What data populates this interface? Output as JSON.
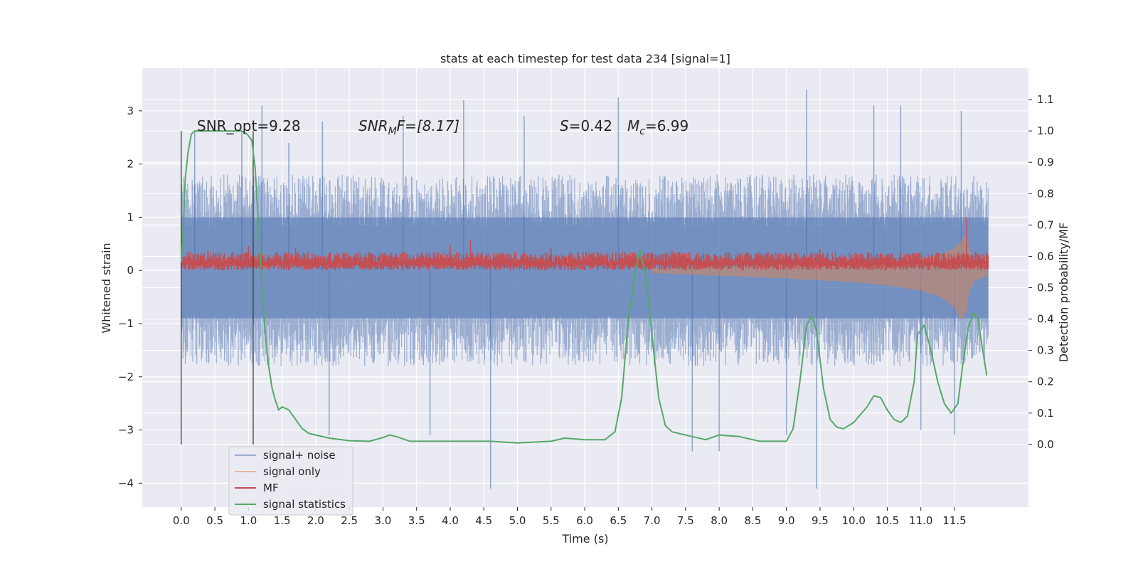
{
  "chart_data": {
    "type": "line",
    "title": "stats at each timestep for test data 234 [signal=1]",
    "xlabel": "Time (s)",
    "ylabel": "Whitened strain",
    "y2label": "Detection probability/MF",
    "xlim": [
      -0.58,
      12.6
    ],
    "ylim": [
      -4.45,
      3.8
    ],
    "y2lim": [
      -0.2,
      1.2
    ],
    "x_ticks": [
      "0.0",
      "0.5",
      "1.0",
      "1.5",
      "2.0",
      "2.5",
      "3.0",
      "3.5",
      "4.0",
      "4.5",
      "5.0",
      "5.5",
      "6.0",
      "6.5",
      "7.0",
      "7.5",
      "8.0",
      "8.5",
      "9.0",
      "9.5",
      "10.0",
      "10.5",
      "11.0",
      "11.5"
    ],
    "y_ticks": [
      "3",
      "2",
      "1",
      "0",
      "−1",
      "−2",
      "−3",
      "−4"
    ],
    "y2_ticks": [
      "1.1",
      "1.0",
      "0.9",
      "0.8",
      "0.7",
      "0.6",
      "0.5",
      "0.4",
      "0.3",
      "0.2",
      "0.1",
      "0.0"
    ],
    "grid": true,
    "legend_position": "lower-left",
    "annotations": {
      "snr_opt": "SNR_opt=9.28",
      "snr_mf_label": "SNR",
      "snr_mf_sub": "M",
      "snr_mf_rest": "F=[8.17]",
      "s_label": "S",
      "s_value": "=0.42",
      "mc_label": "M",
      "mc_sub": "c",
      "mc_value": "=6.99"
    },
    "vertical_markers": [
      0.0,
      1.07
    ],
    "colors": {
      "signal_noise": "#4c72b0",
      "signal_only": "#dd8452",
      "mf": "#c44e52",
      "stats": "#55a868",
      "axes_bg": "#eaeaf2",
      "grid": "#ffffff",
      "marker": "#404040"
    },
    "series": [
      {
        "name": "signal+ noise",
        "axis": "left",
        "x": [
          0.0,
          12.0
        ],
        "envelope": {
          "upper_typical": 1.5,
          "upper_peak": 3.45,
          "lower_typical": -1.5,
          "lower_peak": -4.1
        },
        "spikes": [
          [
            0.2,
            2.6
          ],
          [
            0.9,
            2.6
          ],
          [
            1.2,
            3.1
          ],
          [
            1.6,
            2.4
          ],
          [
            2.1,
            2.8
          ],
          [
            2.2,
            -3.1
          ],
          [
            3.3,
            2.9
          ],
          [
            3.7,
            -3.1
          ],
          [
            4.2,
            3.2
          ],
          [
            4.6,
            -4.1
          ],
          [
            5.1,
            2.9
          ],
          [
            6.5,
            3.25
          ],
          [
            7.6,
            -3.4
          ],
          [
            8.0,
            -3.4
          ],
          [
            9.0,
            -3.1
          ],
          [
            9.3,
            3.4
          ],
          [
            9.45,
            -4.1
          ],
          [
            10.3,
            3.1
          ],
          [
            10.7,
            3.1
          ],
          [
            11.0,
            -3.0
          ],
          [
            11.5,
            -3.1
          ],
          [
            11.6,
            3.0
          ]
        ]
      },
      {
        "name": "signal only",
        "axis": "left",
        "x": [
          7.0,
          8.0,
          9.0,
          10.0,
          10.5,
          11.0,
          11.3,
          11.5,
          11.6,
          11.68,
          11.72,
          11.8,
          12.0
        ],
        "upper": [
          0.05,
          0.07,
          0.1,
          0.15,
          0.18,
          0.23,
          0.3,
          0.42,
          0.55,
          0.7,
          0.4,
          0.2,
          0.1
        ],
        "lower": [
          -0.05,
          -0.1,
          -0.15,
          -0.22,
          -0.28,
          -0.38,
          -0.5,
          -0.7,
          -0.95,
          -0.75,
          -0.4,
          -0.2,
          -0.1
        ]
      },
      {
        "name": "MF",
        "axis": "left",
        "x": [
          0.0,
          12.0
        ],
        "band_upper": 0.35,
        "band_lower": 0.0,
        "spikes": [
          [
            0.4,
            0.38
          ],
          [
            1.0,
            0.45
          ],
          [
            1.7,
            0.42
          ],
          [
            4.0,
            0.48
          ],
          [
            4.3,
            0.57
          ],
          [
            5.5,
            0.42
          ],
          [
            7.3,
            0.38
          ],
          [
            9.5,
            0.4
          ],
          [
            11.68,
            1.0
          ]
        ]
      },
      {
        "name": "signal statistics",
        "axis": "right",
        "x": [
          0.0,
          0.03,
          0.06,
          0.1,
          0.15,
          0.2,
          0.3,
          0.5,
          0.7,
          0.9,
          0.98,
          1.05,
          1.1,
          1.15,
          1.2,
          1.25,
          1.3,
          1.35,
          1.4,
          1.45,
          1.5,
          1.55,
          1.6,
          1.7,
          1.8,
          1.9,
          2.0,
          2.2,
          2.5,
          2.8,
          3.0,
          3.1,
          3.2,
          3.4,
          3.7,
          4.0,
          4.3,
          4.6,
          5.0,
          5.5,
          5.7,
          6.0,
          6.3,
          6.45,
          6.55,
          6.65,
          6.75,
          6.82,
          6.9,
          7.0,
          7.1,
          7.2,
          7.3,
          7.4,
          7.6,
          7.8,
          8.0,
          8.3,
          8.6,
          9.0,
          9.1,
          9.2,
          9.3,
          9.38,
          9.45,
          9.55,
          9.65,
          9.75,
          9.85,
          10.0,
          10.2,
          10.3,
          10.4,
          10.5,
          10.6,
          10.7,
          10.8,
          10.9,
          10.95,
          11.05,
          11.15,
          11.25,
          11.35,
          11.45,
          11.55,
          11.62,
          11.7,
          11.78,
          11.85,
          11.92,
          11.98
        ],
        "y": [
          0.58,
          0.7,
          0.85,
          0.93,
          0.99,
          1.0,
          1.0,
          1.0,
          1.0,
          1.0,
          0.99,
          0.97,
          0.88,
          0.7,
          0.5,
          0.35,
          0.25,
          0.18,
          0.14,
          0.11,
          0.12,
          0.115,
          0.11,
          0.08,
          0.05,
          0.035,
          0.03,
          0.02,
          0.012,
          0.01,
          0.022,
          0.03,
          0.025,
          0.01,
          0.01,
          0.01,
          0.01,
          0.01,
          0.005,
          0.01,
          0.02,
          0.015,
          0.015,
          0.04,
          0.15,
          0.4,
          0.55,
          0.62,
          0.55,
          0.35,
          0.15,
          0.06,
          0.04,
          0.035,
          0.025,
          0.015,
          0.03,
          0.025,
          0.01,
          0.01,
          0.05,
          0.2,
          0.38,
          0.41,
          0.36,
          0.18,
          0.08,
          0.055,
          0.05,
          0.07,
          0.12,
          0.155,
          0.15,
          0.11,
          0.08,
          0.07,
          0.09,
          0.2,
          0.35,
          0.38,
          0.3,
          0.2,
          0.13,
          0.1,
          0.13,
          0.25,
          0.37,
          0.42,
          0.4,
          0.3,
          0.22
        ]
      }
    ]
  }
}
